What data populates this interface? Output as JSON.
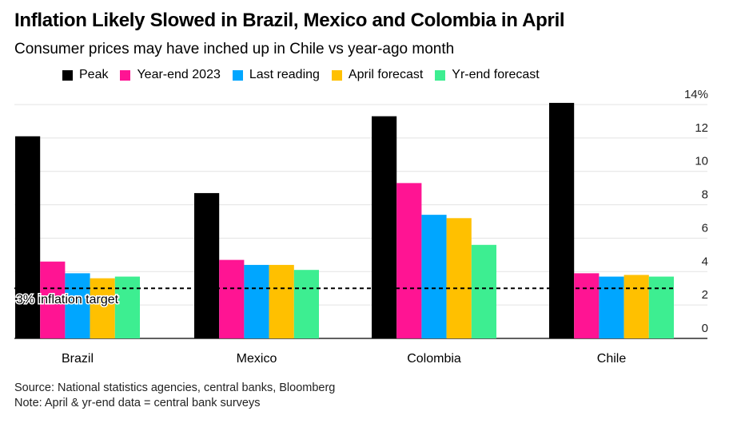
{
  "title": "Inflation Likely Slowed in Brazil, Mexico and Colombia in April",
  "subtitle": "Consumer prices may have inched up in Chile vs year-ago month",
  "footer": {
    "source": "Source: National statistics agencies, central banks, Bloomberg",
    "note": "Note: April & yr-end data = central bank surveys"
  },
  "chart_data": {
    "type": "bar",
    "categories": [
      "Brazil",
      "Mexico",
      "Colombia",
      "Chile"
    ],
    "series": [
      {
        "name": "Peak",
        "color": "#000000",
        "values": [
          12.1,
          8.7,
          13.3,
          14.1
        ]
      },
      {
        "name": "Year-end 2023",
        "color": "#ff1493",
        "values": [
          4.6,
          4.7,
          9.3,
          3.9
        ]
      },
      {
        "name": "Last reading",
        "color": "#00a6ff",
        "values": [
          3.9,
          4.4,
          7.4,
          3.7
        ]
      },
      {
        "name": "April forecast",
        "color": "#ffc000",
        "values": [
          3.6,
          4.4,
          7.2,
          3.8
        ]
      },
      {
        "name": "Yr-end forecast",
        "color": "#3dee91",
        "values": [
          3.7,
          4.1,
          5.6,
          3.7
        ]
      }
    ],
    "ylim": [
      0,
      14
    ],
    "y_ticks": [
      "0",
      "2",
      "4",
      "6",
      "8",
      "10",
      "12",
      "14%"
    ],
    "y_axis_side": "right",
    "grid": true,
    "legend_position": "top",
    "reference_line": {
      "value": 3,
      "label": "3% inflation target",
      "style": "dashed"
    }
  }
}
